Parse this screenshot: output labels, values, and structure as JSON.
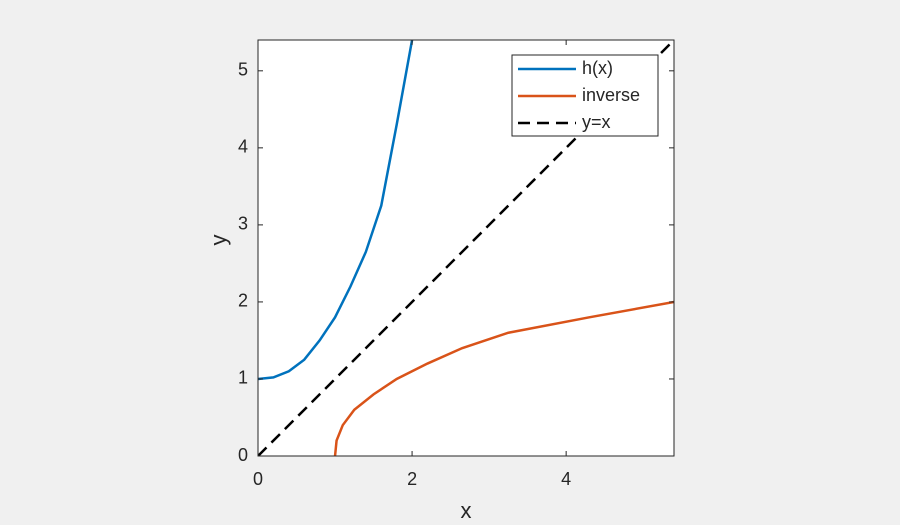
{
  "chart_data": {
    "type": "line",
    "xlabel": "x",
    "ylabel": "y",
    "xlim": [
      0,
      5.4
    ],
    "ylim": [
      0,
      5.4
    ],
    "xticks": [
      0,
      2,
      4
    ],
    "yticks": [
      0,
      1,
      2,
      3,
      4,
      5
    ],
    "legend": "top-right",
    "series": [
      {
        "name": "h(x)",
        "color": "#0072bd",
        "style": "solid",
        "x": [
          0,
          0.2,
          0.4,
          0.6,
          0.8,
          1.0,
          1.2,
          1.4,
          1.6,
          1.8,
          2.0
        ],
        "values": [
          1,
          1.02,
          1.1,
          1.25,
          1.5,
          1.8,
          2.2,
          2.65,
          3.25,
          4.3,
          5.4
        ]
      },
      {
        "name": "inverse",
        "color": "#d95319",
        "style": "solid",
        "x": [
          1,
          1.02,
          1.1,
          1.25,
          1.5,
          1.8,
          2.2,
          2.65,
          3.25,
          4.3,
          5.4
        ],
        "values": [
          0,
          0.2,
          0.4,
          0.6,
          0.8,
          1.0,
          1.2,
          1.4,
          1.6,
          1.8,
          2.0
        ]
      },
      {
        "name": "y=x",
        "color": "#000000",
        "style": "dashed",
        "x": [
          0,
          5.4
        ],
        "values": [
          0,
          5.4
        ]
      }
    ]
  }
}
